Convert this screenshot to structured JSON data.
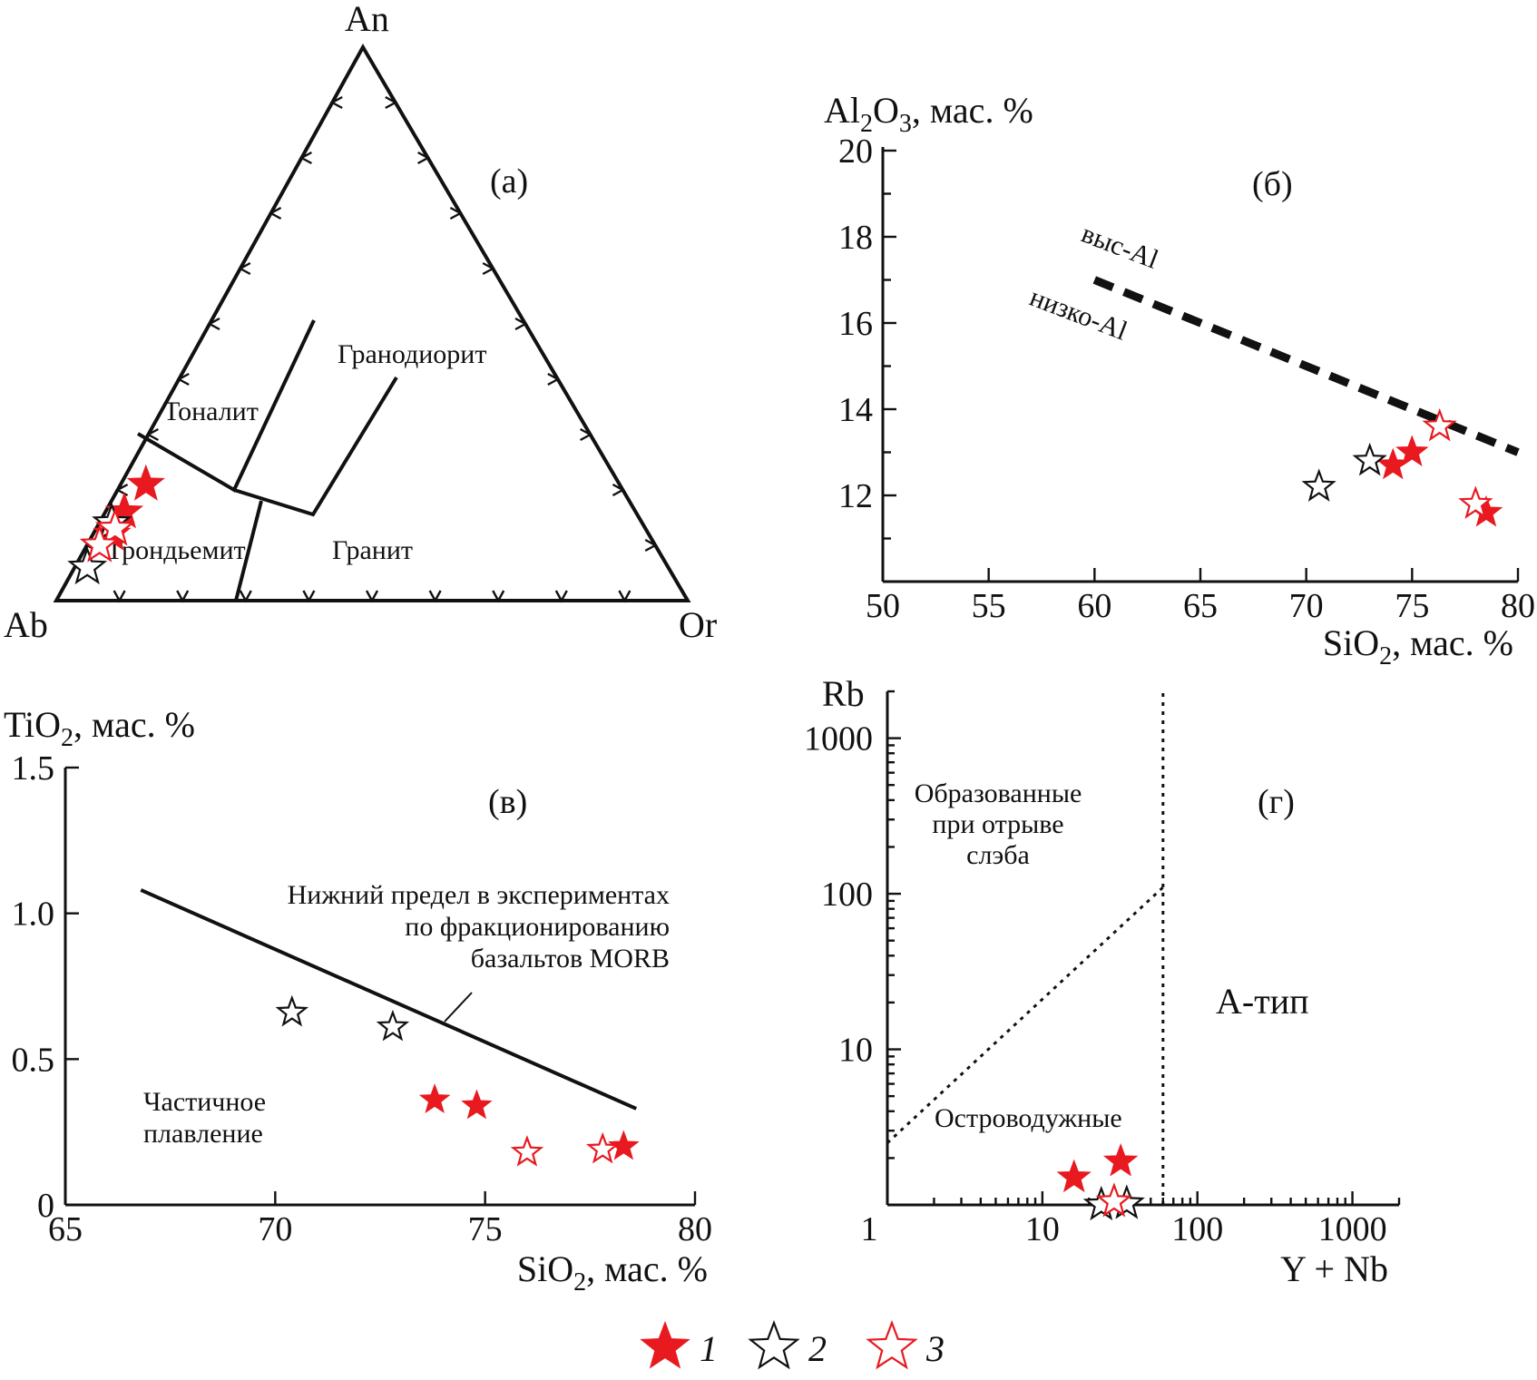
{
  "colors": {
    "red": "#e8191f",
    "black": "#111111"
  },
  "legend": [
    {
      "label": "1",
      "style": "filled-red"
    },
    {
      "label": "2",
      "style": "open-black"
    },
    {
      "label": "3",
      "style": "open-red"
    }
  ],
  "chart_data": [
    {
      "panel": "(а)",
      "type": "scatter",
      "subtype": "ternary",
      "vertices": {
        "top": "An",
        "left": "Ab",
        "right": "Or"
      },
      "fields": [
        "Тоналит",
        "Гранодиорит",
        "Трондьемит",
        "Гранит"
      ],
      "points": [
        {
          "group": 1,
          "An": 21,
          "Ab": 75,
          "Or": 4
        },
        {
          "group": 1,
          "An": 16,
          "Ab": 81,
          "Or": 3
        },
        {
          "group": 1,
          "An": 12,
          "Ab": 85,
          "Or": 3
        },
        {
          "group": 2,
          "An": 14,
          "Ab": 84,
          "Or": 2
        },
        {
          "group": 2,
          "An": 6,
          "Ab": 92,
          "Or": 2
        },
        {
          "group": 3,
          "An": 13,
          "Ab": 84,
          "Or": 3
        },
        {
          "group": 3,
          "An": 10,
          "Ab": 88,
          "Or": 2
        }
      ]
    },
    {
      "panel": "(б)",
      "type": "scatter",
      "xlabel": "SiO2, мас. %",
      "ylabel": "Al2O3, мас. %",
      "xlim": [
        50,
        80
      ],
      "ylim": [
        10,
        20
      ],
      "xticks": [
        50,
        55,
        60,
        65,
        70,
        75,
        80
      ],
      "yticks": [
        12,
        14,
        16,
        18,
        20
      ],
      "line": {
        "style": "dashed",
        "x": [
          60,
          80
        ],
        "y": [
          17,
          13
        ]
      },
      "annotations": [
        "выс-Al",
        "низко-Al"
      ],
      "points": [
        {
          "group": 1,
          "x": 74.1,
          "y": 12.7
        },
        {
          "group": 1,
          "x": 75.0,
          "y": 13.0
        },
        {
          "group": 1,
          "x": 78.5,
          "y": 11.6
        },
        {
          "group": 2,
          "x": 70.6,
          "y": 12.2
        },
        {
          "group": 2,
          "x": 73.0,
          "y": 12.8
        },
        {
          "group": 3,
          "x": 76.3,
          "y": 13.6
        },
        {
          "group": 3,
          "x": 78.0,
          "y": 11.8
        }
      ]
    },
    {
      "panel": "(в)",
      "type": "scatter",
      "xlabel": "SiO2, мас. %",
      "ylabel": "TiO2, мас. %",
      "xlim": [
        65,
        80
      ],
      "ylim": [
        0,
        1.5
      ],
      "xticks": [
        65,
        70,
        75,
        80
      ],
      "yticks": [
        0,
        0.5,
        1.0,
        1.5
      ],
      "ytick_labels": [
        "0",
        "0.5",
        "1.0",
        "1.5"
      ],
      "line": {
        "style": "solid",
        "x": [
          66.8,
          78.6
        ],
        "y": [
          1.08,
          0.33
        ]
      },
      "annotations": [
        "Нижний предел в экспериментах",
        "по фракционированию",
        "базальтов MORB",
        "Частичное",
        "плавление"
      ],
      "points": [
        {
          "group": 1,
          "x": 73.8,
          "y": 0.36
        },
        {
          "group": 1,
          "x": 74.8,
          "y": 0.34
        },
        {
          "group": 1,
          "x": 78.3,
          "y": 0.2
        },
        {
          "group": 2,
          "x": 70.4,
          "y": 0.66
        },
        {
          "group": 2,
          "x": 72.8,
          "y": 0.61
        },
        {
          "group": 3,
          "x": 76.0,
          "y": 0.18
        },
        {
          "group": 3,
          "x": 77.8,
          "y": 0.19
        }
      ]
    },
    {
      "panel": "(г)",
      "type": "scatter",
      "scale": "log-log",
      "xlabel": "Y + Nb",
      "ylabel": "Rb",
      "xlim": [
        1,
        2000
      ],
      "ylim": [
        1,
        2000
      ],
      "xticks": [
        1,
        10,
        100,
        1000
      ],
      "yticks": [
        10,
        100,
        1000
      ],
      "lines": [
        {
          "style": "dotted",
          "x": [
            1,
            60
          ],
          "y": [
            2.5,
            110
          ]
        },
        {
          "style": "dotted",
          "x": [
            60,
            60
          ],
          "y": [
            1,
            2000
          ]
        }
      ],
      "annotations": [
        "Образованные",
        "при отрыве",
        "слэба",
        "А-тип",
        "Островодужные"
      ],
      "points": [
        {
          "group": 1,
          "x": 16,
          "y": 1.5
        },
        {
          "group": 1,
          "x": 32,
          "y": 1.9
        },
        {
          "group": 2,
          "x": 24,
          "y": 1.0
        },
        {
          "group": 2,
          "x": 35,
          "y": 1.02
        },
        {
          "group": 3,
          "x": 29,
          "y": 1.05
        }
      ]
    }
  ],
  "labels": {
    "a_panel": "(а)",
    "a_top": "An",
    "a_left": "Ab",
    "a_right": "Or",
    "a_f1": "Тоналит",
    "a_f2": "Гранодиорит",
    "a_f3": "Трондьемит",
    "a_f4": "Гранит",
    "b_panel": "(б)",
    "b_y_main": "Al",
    "b_y_s1": "2",
    "b_y_mid": "O",
    "b_y_s2": "3",
    "b_y_unit": ", мас. %",
    "b_x_main": "SiO",
    "b_x_sub": "2",
    "b_x_unit": ", мас. %",
    "b_hi": "выс-Al",
    "b_lo": "низко-Al",
    "v_panel": "(в)",
    "v_y_main": "TiO",
    "v_y_sub": "2",
    "v_y_unit": ", мас. %",
    "v_x_main": "SiO",
    "v_x_sub": "2",
    "v_x_unit": ", мас. %",
    "v_note1": "Нижний предел в экспериментах",
    "v_note2": "по фракционированию",
    "v_note3": "базальтов MORB",
    "v_pm1": "Частичное",
    "v_pm2": "плавление",
    "g_panel": "(г)",
    "g_ylabel": "Rb",
    "g_xlabel": "Y + Nb",
    "g_s1": "Образованные",
    "g_s2": "при отрыве",
    "g_s3": "слэба",
    "g_atype": "А-тип",
    "g_arc": "Островодужные"
  }
}
